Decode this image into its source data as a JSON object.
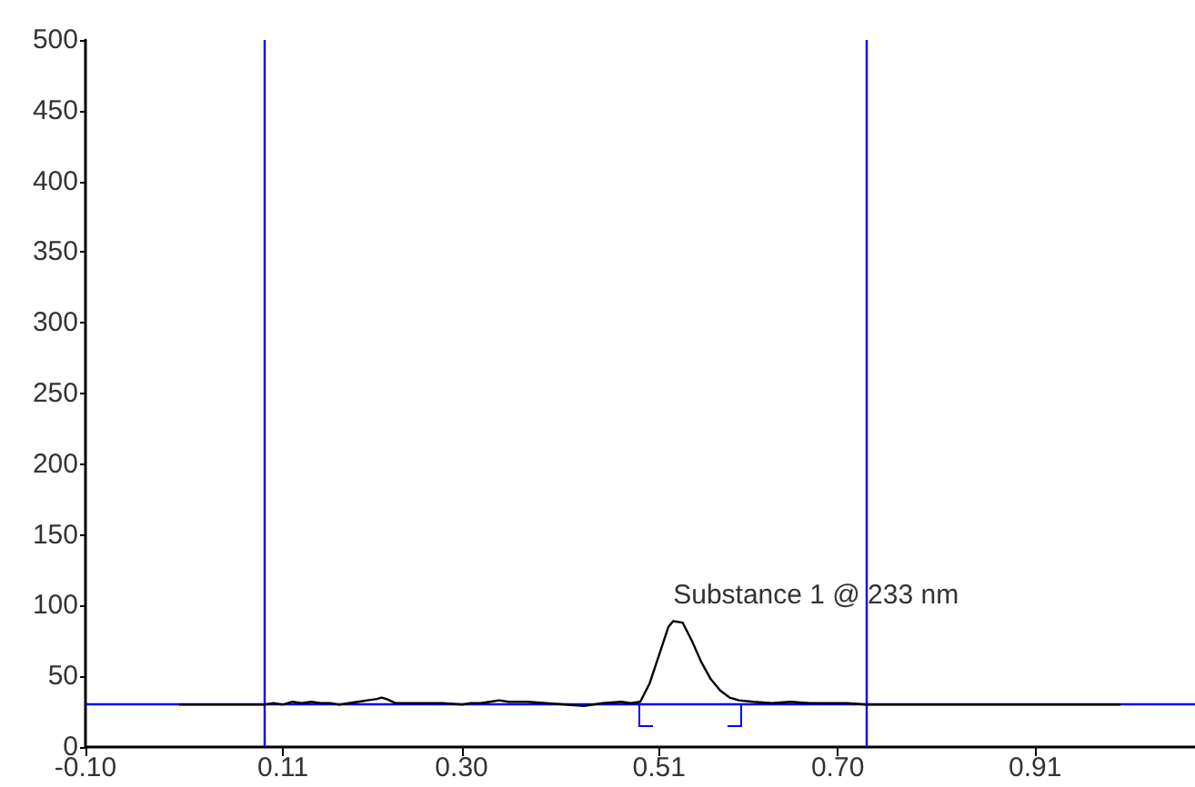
{
  "chart_data": {
    "type": "line",
    "x": [
      0,
      0.09,
      0.1,
      0.11,
      0.12,
      0.13,
      0.14,
      0.15,
      0.16,
      0.17,
      0.18,
      0.19,
      0.2,
      0.21,
      0.215,
      0.22,
      0.23,
      0.24,
      0.26,
      0.28,
      0.3,
      0.31,
      0.32,
      0.33,
      0.34,
      0.35,
      0.37,
      0.39,
      0.41,
      0.43,
      0.45,
      0.47,
      0.48,
      0.49,
      0.5,
      0.51,
      0.52,
      0.525,
      0.535,
      0.545,
      0.555,
      0.565,
      0.575,
      0.585,
      0.595,
      0.61,
      0.63,
      0.65,
      0.67,
      0.69,
      0.71,
      0.73,
      1.0
    ],
    "series": [
      {
        "color": "#000000",
        "values": [
          30,
          30,
          31,
          30,
          32,
          31,
          32,
          31,
          31,
          30,
          31,
          32,
          33,
          34,
          35,
          34,
          31,
          31,
          31,
          31,
          30,
          31,
          31,
          32,
          33,
          32,
          32,
          31,
          30,
          29,
          31,
          32,
          31,
          32,
          45,
          65,
          85,
          89,
          88,
          75,
          60,
          48,
          40,
          35,
          33,
          32,
          31,
          32,
          31,
          31,
          31,
          30,
          30
        ]
      }
    ],
    "xlim": [
      -0.1,
      1.08
    ],
    "xticks": [
      {
        "value": -0.1,
        "label": "-0.10"
      },
      0.11,
      {
        "value": 0.3,
        "label": "0.30"
      },
      0.51,
      {
        "value": 0.7,
        "label": "0.70"
      },
      0.91
    ],
    "ylim": [
      0,
      500
    ],
    "yticks": [
      0,
      50,
      100,
      150,
      200,
      250,
      300,
      350,
      400,
      450,
      500
    ],
    "grid": false,
    "marker": "none",
    "line_style": "solid",
    "ref_lines": [
      {
        "axis": "x",
        "value": 0.09,
        "color": "#0000ff"
      },
      {
        "axis": "x",
        "value": 0.73,
        "color": "#0000ff"
      },
      {
        "axis": "y",
        "value": 30,
        "color": "#0000ff"
      }
    ],
    "annotations": [
      {
        "text": "Substance 1 @ 233 nm",
        "x": 0.525,
        "y": 89
      }
    ]
  }
}
